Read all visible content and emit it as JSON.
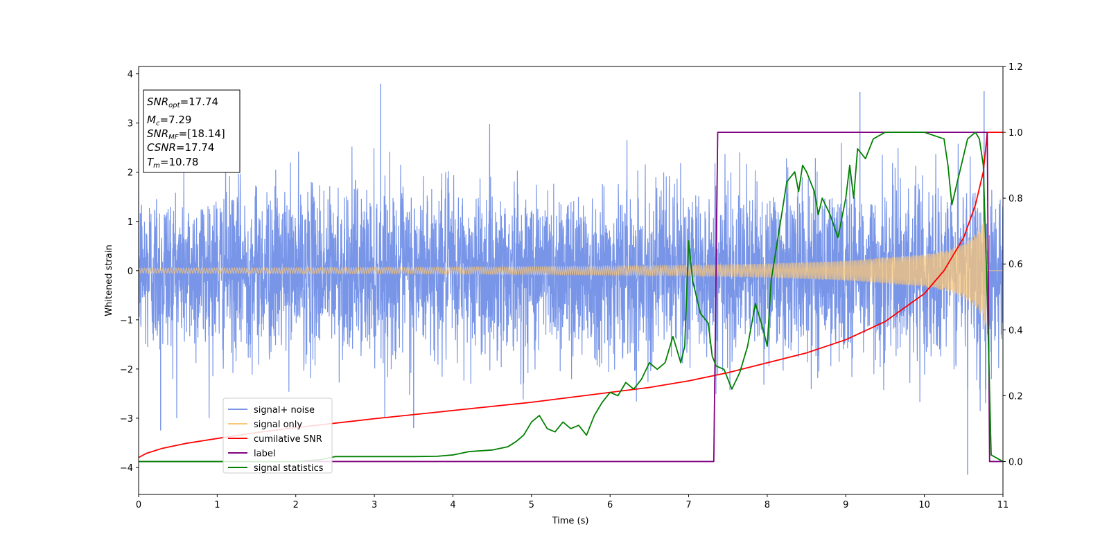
{
  "chart_data": {
    "type": "line",
    "xlabel": "Time (s)",
    "ylabel": "Whitened strain",
    "xlim": [
      0,
      11
    ],
    "ylim_left": [
      -4.55,
      4.15
    ],
    "ylim_right": [
      -0.1,
      1.2
    ],
    "x_ticks": [
      0,
      1,
      2,
      3,
      4,
      5,
      6,
      7,
      8,
      9,
      10,
      11
    ],
    "y_ticks_left": [
      -4,
      -3,
      -2,
      -1,
      0,
      1,
      2,
      3,
      4
    ],
    "y_ticks_right": [
      0.0,
      0.2,
      0.4,
      0.6,
      0.8,
      1.0,
      1.2
    ],
    "y_ticks_right_labels": [
      "0.0",
      "0.2",
      "0.4",
      "0.6",
      "0.8",
      "1.0",
      "1.2"
    ],
    "y_tick_labels_left": [
      "−4",
      "−3",
      "−2",
      "−1",
      "0",
      "1",
      "2",
      "3",
      "4"
    ],
    "annotation": {
      "snr_opt": {
        "main": "SNR",
        "sub": "opt",
        "value": "=17.74"
      },
      "mc": {
        "main": "M",
        "sub": "c",
        "value": "=7.29"
      },
      "snr_mf": {
        "main": "SNR",
        "sub": "MF",
        "value": "=[18.14]"
      },
      "csnr": {
        "main": "CSNR",
        "value": "=17.74"
      },
      "tm": {
        "main": "T",
        "sub": "m",
        "value": "=10.78"
      }
    },
    "legend": {
      "placement": "lower-left",
      "entries": [
        {
          "label": "signal+ noise",
          "color": "#7895e8"
        },
        {
          "label": "signal only",
          "color": "#f9c77a"
        },
        {
          "label": "cumilative SNR",
          "color": "#ff0000"
        },
        {
          "label": "label",
          "color": "#800080"
        },
        {
          "label": "signal statistics",
          "color": "#008000"
        }
      ]
    },
    "series": [
      {
        "name": "signal+ noise",
        "axis": "left",
        "color": "#7895e8",
        "description_values": {
          "noise_std": 0.85,
          "spikes": [
            [
              3.08,
              3.8
            ],
            [
              9.18,
              3.63
            ],
            [
              10.76,
              3.65
            ],
            [
              10.55,
              -4.15
            ],
            [
              0.28,
              -3.25
            ],
            [
              3.5,
              -3.2
            ]
          ]
        }
      },
      {
        "name": "signal only",
        "axis": "left",
        "color": "#f9c77a",
        "envelope": {
          "x": [
            0,
            2,
            4,
            6,
            7,
            8,
            9,
            10,
            10.3,
            10.5,
            10.65,
            10.75,
            10.78,
            10.8,
            11
          ],
          "amp": [
            0.05,
            0.06,
            0.07,
            0.09,
            0.11,
            0.14,
            0.2,
            0.33,
            0.42,
            0.55,
            0.75,
            0.97,
            1.2,
            0,
            0
          ]
        }
      },
      {
        "name": "cumilative SNR",
        "axis": "right",
        "color": "#ff0000",
        "x": [
          0,
          0.1,
          0.3,
          0.6,
          1,
          1.5,
          2,
          3,
          4,
          5,
          6,
          6.5,
          7,
          7.5,
          8,
          8.5,
          9,
          9.5,
          10,
          10.25,
          10.5,
          10.65,
          10.75,
          10.78,
          10.8,
          11
        ],
        "y": [
          0.012,
          0.025,
          0.04,
          0.055,
          0.07,
          0.088,
          0.103,
          0.13,
          0.155,
          0.18,
          0.21,
          0.225,
          0.245,
          0.27,
          0.3,
          0.33,
          0.37,
          0.425,
          0.51,
          0.58,
          0.68,
          0.78,
          0.88,
          0.95,
          1.0,
          1.0
        ]
      },
      {
        "name": "label",
        "axis": "right",
        "color": "#800080",
        "x": [
          0,
          7.32,
          7.37,
          10.8,
          10.83,
          11
        ],
        "y": [
          0,
          0,
          1,
          1,
          0,
          0
        ]
      },
      {
        "name": "signal statistics",
        "axis": "right",
        "color": "#008000",
        "x": [
          0,
          1,
          2,
          2.3,
          2.5,
          3,
          3.5,
          3.8,
          4,
          4.2,
          4.5,
          4.7,
          4.8,
          4.9,
          5,
          5.1,
          5.2,
          5.3,
          5.4,
          5.5,
          5.6,
          5.7,
          5.8,
          5.9,
          6,
          6.1,
          6.2,
          6.3,
          6.4,
          6.5,
          6.6,
          6.7,
          6.8,
          6.9,
          6.95,
          7.0,
          7.05,
          7.15,
          7.25,
          7.3,
          7.35,
          7.45,
          7.55,
          7.65,
          7.75,
          7.85,
          7.95,
          8.0,
          8.05,
          8.15,
          8.25,
          8.35,
          8.4,
          8.45,
          8.5,
          8.6,
          8.65,
          8.7,
          8.8,
          8.9,
          9.0,
          9.05,
          9.1,
          9.15,
          9.25,
          9.35,
          9.5,
          9.7,
          10.0,
          10.25,
          10.3,
          10.35,
          10.45,
          10.55,
          10.65,
          10.7,
          10.75,
          10.8,
          10.85,
          11
        ],
        "y": [
          0.0,
          0.0,
          0.0,
          0.005,
          0.015,
          0.015,
          0.015,
          0.016,
          0.02,
          0.03,
          0.035,
          0.045,
          0.06,
          0.08,
          0.12,
          0.14,
          0.1,
          0.09,
          0.12,
          0.1,
          0.11,
          0.08,
          0.14,
          0.18,
          0.21,
          0.2,
          0.24,
          0.22,
          0.25,
          0.3,
          0.28,
          0.3,
          0.38,
          0.3,
          0.35,
          0.67,
          0.55,
          0.45,
          0.42,
          0.32,
          0.29,
          0.28,
          0.22,
          0.27,
          0.35,
          0.48,
          0.4,
          0.35,
          0.55,
          0.7,
          0.85,
          0.88,
          0.82,
          0.9,
          0.88,
          0.82,
          0.75,
          0.8,
          0.75,
          0.68,
          0.8,
          0.9,
          0.8,
          0.95,
          0.92,
          0.98,
          1.0,
          1.0,
          1.0,
          0.98,
          0.9,
          0.78,
          0.88,
          0.98,
          1.0,
          0.98,
          0.9,
          0.5,
          0.02,
          0.0
        ]
      }
    ]
  }
}
